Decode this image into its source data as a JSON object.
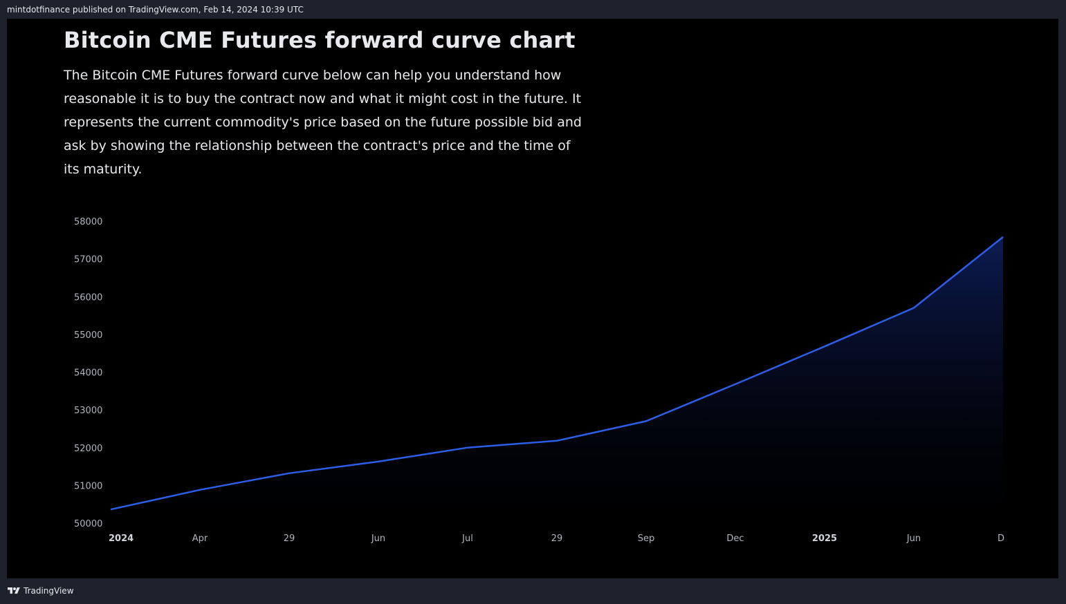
{
  "header": {
    "published_line": "mintdotfinance published on TradingView.com, Feb 14, 2024 10:39 UTC"
  },
  "content": {
    "title": "Bitcoin CME Futures forward curve chart",
    "description": "The Bitcoin CME Futures forward curve below can help you understand how reasonable it is to buy the contract now and what it might cost in the future. It represents the current commodity's price based on the future possible bid and ask by showing the relationship between the contract's price and the time of its maturity."
  },
  "footer": {
    "brand": "TradingView",
    "logo_icon": "tradingview-logo-icon"
  },
  "colors": {
    "line": "#2d5ee8",
    "background": "#000000",
    "frame": "#1e222d"
  },
  "chart_data": {
    "type": "area",
    "title": "",
    "xlabel": "",
    "ylabel": "",
    "x_tick_labels": [
      "2024",
      "Apr",
      "29",
      "Jun",
      "Jul",
      "29",
      "Sep",
      "Dec",
      "2025",
      "Jun",
      "D"
    ],
    "x_tick_bold": [
      true,
      false,
      false,
      false,
      false,
      false,
      false,
      false,
      true,
      false,
      false
    ],
    "y_ticks": [
      50000,
      51000,
      52000,
      53000,
      54000,
      55000,
      56000,
      57000,
      58000
    ],
    "ylim": [
      50000,
      58000
    ],
    "grid": false,
    "series": [
      {
        "x": [
          "2024",
          "Apr",
          "29",
          "Jun",
          "Jul",
          "29",
          "Sep",
          "Dec",
          "2025",
          "Jun",
          "D"
        ],
        "values": [
          50380,
          50900,
          51340,
          51650,
          52020,
          52200,
          52720,
          53700,
          54700,
          55720,
          57600
        ]
      }
    ]
  }
}
